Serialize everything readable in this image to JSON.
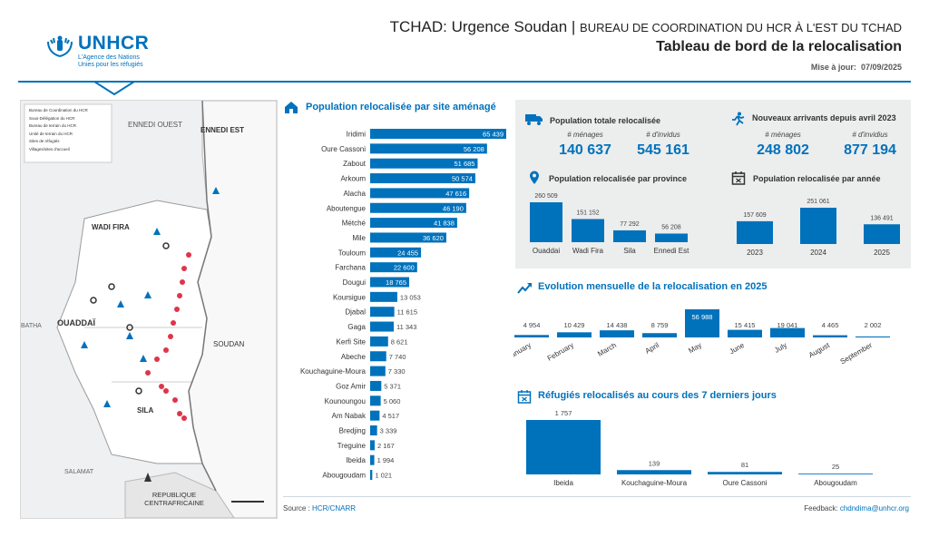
{
  "header": {
    "title_main": "TCHAD: Urgence Soudan | ",
    "title_sub": "BUREAU DE COORDINATION DU HCR À L'EST DU TCHAD",
    "subtitle": "Tableau de bord de la relocalisation",
    "date_label": "Mise à jour:",
    "date_value": "07/09/2025"
  },
  "logo": {
    "name": "UNHCR",
    "line1": "L'Agence des Nations",
    "line2": "Unies pour les réfugiés"
  },
  "map": {
    "legend": [
      "Bureau de Coordination du HCR",
      "Sous-Délégation du HCR",
      "Bureau de terrain du HCR",
      "Unité de terrain du HCR",
      "Sites de réfugiés",
      "Villages/sites d'accueil"
    ],
    "labels": {
      "ennedi_ouest": "ENNEDI OUEST",
      "ennedi_est": "ENNEDI EST",
      "wadi_fira": "WADI FIRA",
      "ouaddai": "OUADDAÏ",
      "batha": "BATHA",
      "soudan": "SOUDAN",
      "sila": "SILA",
      "salamat": "SALAMAT",
      "rca": "REPUBLIQUE CENTRAFRICAINE"
    }
  },
  "bar_section": {
    "title": "Population relocalisée par site aménagé",
    "icon": "house-icon"
  },
  "totals": {
    "title": "Population totale relocalisée",
    "icon": "truck-icon",
    "menages_label": "# ménages",
    "menages_value": "140 637",
    "individus_label": "# d'invidus",
    "individus_value": "545 161"
  },
  "arrivals": {
    "title": "Nouveaux arrivants depuis avril 2023",
    "icon": "running-person-icon",
    "menages_label": "# ménages",
    "menages_value": "248 802",
    "individus_label": "# d'invidius",
    "individus_value": "877 194"
  },
  "province_section": {
    "title": "Population relocalisée par province",
    "icon": "location-pin-icon"
  },
  "year_section": {
    "title": "Population relocalisée par année",
    "icon": "calendar-icon"
  },
  "monthly_section": {
    "title": "Evolution mensuelle de la relocalisation en 2025",
    "icon": "trend-up-icon"
  },
  "weekly_section": {
    "title": "Réfugiés relocalisés au cours des 7 derniers jours",
    "icon": "calendar-x-icon"
  },
  "footer": {
    "source_label": "Source : ",
    "source_value": "HCR/CNARR",
    "feedback_label": "Feedback: ",
    "feedback_value": "chdndima@unhcr.org"
  },
  "colors": {
    "primary": "#0072bc",
    "panel": "#eceded",
    "pin": "#e0344a"
  },
  "chart_data": [
    {
      "type": "bar",
      "orientation": "horizontal",
      "title": "Population relocalisée par site aménagé",
      "categories": [
        "Iridimi",
        "Oure Cassoni",
        "Zabout",
        "Arkoum",
        "Alacha",
        "Aboutengue",
        "Métché",
        "Mile",
        "Touloum",
        "Farchana",
        "Dougui",
        "Koursigue",
        "Djabal",
        "Gaga",
        "Kerfi Site",
        "Abeche",
        "Kouchaguine-Moura",
        "Goz Amir",
        "Kounoungou",
        "Am Nabak",
        "Bredjing",
        "Treguine",
        "Ibeida",
        "Abougoudam"
      ],
      "values": [
        65439,
        56208,
        51685,
        50574,
        47616,
        46190,
        41838,
        36620,
        24455,
        22600,
        18765,
        13053,
        11615,
        11343,
        8621,
        7740,
        7330,
        5371,
        5060,
        4517,
        3339,
        2167,
        1994,
        1021
      ],
      "labels": [
        "65 439",
        "56 208",
        "51 685",
        "50 574",
        "47 616",
        "46 190",
        "41 838",
        "36 620",
        "24 455",
        "22 600",
        "18 765",
        "13 053",
        "11 615",
        "11 343",
        "8 621",
        "7 740",
        "7 330",
        "5 371",
        "5 060",
        "4 517",
        "3 339",
        "2 167",
        "1 994",
        "1 021"
      ]
    },
    {
      "type": "bar",
      "title": "Population relocalisée par province",
      "categories": [
        "Ouaddai",
        "Wadi Fira",
        "Sila",
        "Ennedi Est"
      ],
      "values": [
        260509,
        151152,
        77292,
        56208
      ],
      "labels": [
        "260 509",
        "151 152",
        "77 292",
        "56 208"
      ]
    },
    {
      "type": "bar",
      "title": "Population relocalisée par année",
      "categories": [
        "2023",
        "2024",
        "2025"
      ],
      "values": [
        157609,
        251061,
        136491
      ],
      "labels": [
        "157 609",
        "251 061",
        "136 491"
      ]
    },
    {
      "type": "bar",
      "title": "Evolution mensuelle de la relocalisation en 2025",
      "categories": [
        "January",
        "February",
        "March",
        "April",
        "May",
        "June",
        "July",
        "August",
        "September"
      ],
      "values": [
        4954,
        10429,
        14438,
        8759,
        56988,
        15415,
        19041,
        4465,
        2002
      ],
      "labels": [
        "4 954",
        "10 429",
        "14 438",
        "8 759",
        "56 988",
        "15 415",
        "19 041",
        "4 465",
        "2 002"
      ]
    },
    {
      "type": "bar",
      "title": "Réfugiés relocalisés au cours des 7 derniers jours",
      "categories": [
        "Ibeida",
        "Kouchaguine-Moura",
        "Oure Cassoni",
        "Abougoudam"
      ],
      "values": [
        1757,
        139,
        81,
        25
      ],
      "labels": [
        "1 757",
        "139",
        "81",
        "25"
      ]
    }
  ]
}
